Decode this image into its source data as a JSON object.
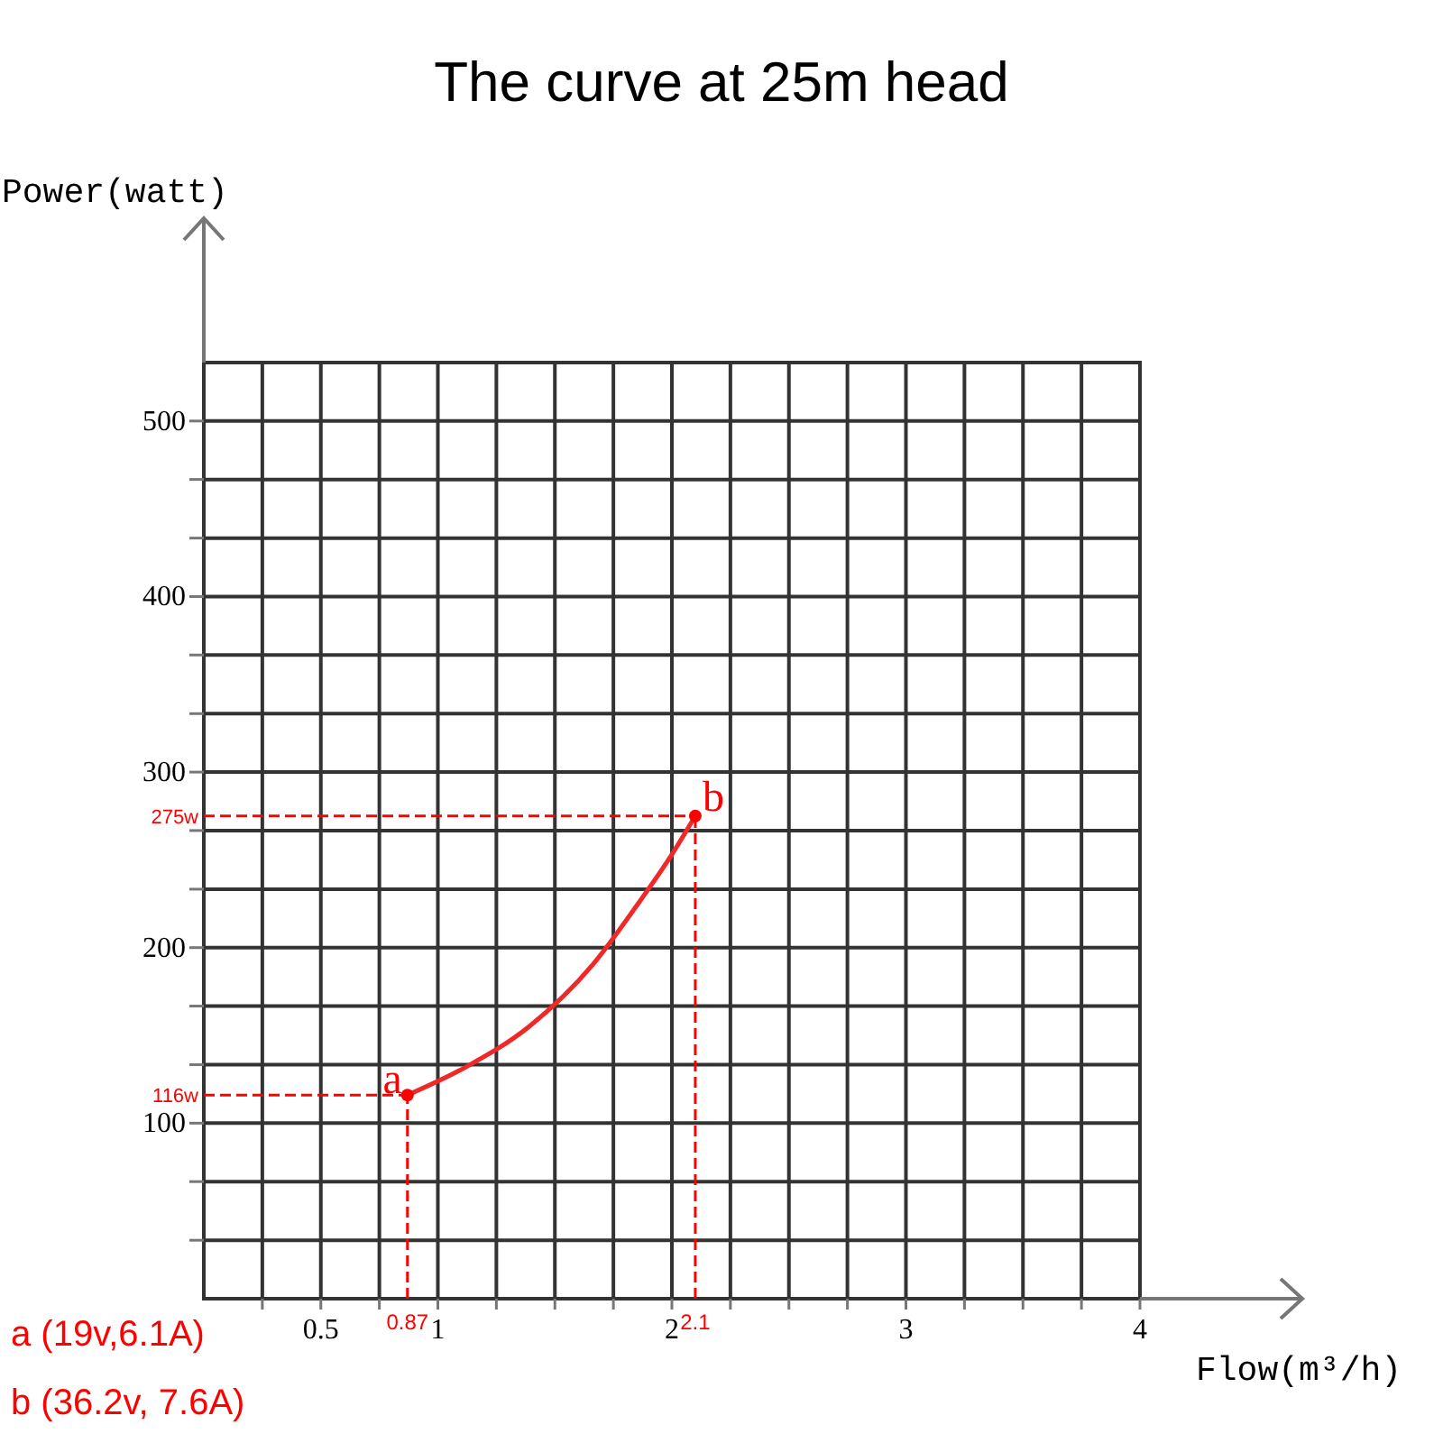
{
  "chart_data": {
    "type": "line",
    "title": "The curve at 25m head",
    "xlabel": "Flow(m³/h)",
    "ylabel": "Power(watt)",
    "x": [
      0.87,
      1.12,
      1.39,
      1.66,
      1.85,
      1.99,
      2.1
    ],
    "values": [
      116,
      132,
      155,
      190,
      224,
      251,
      275
    ],
    "color": "#f02828",
    "xlim": [
      0,
      4
    ],
    "ylim": [
      0,
      533.3
    ],
    "xticks": [
      {
        "value": 0.25,
        "label": null
      },
      0.5,
      {
        "value": 0.75,
        "label": null
      },
      1,
      {
        "value": 1.25,
        "label": null
      },
      {
        "value": 1.5,
        "label": null
      },
      {
        "value": 1.75,
        "label": null
      },
      2,
      {
        "value": 2.25,
        "label": null
      },
      {
        "value": 2.5,
        "label": null
      },
      {
        "value": 2.75,
        "label": null
      },
      3,
      {
        "value": 3.25,
        "label": null
      },
      {
        "value": 3.5,
        "label": null
      },
      {
        "value": 3.75,
        "label": null
      },
      4
    ],
    "yticks": [
      {
        "value": 33.3,
        "label": null
      },
      {
        "value": 66.7,
        "label": null
      },
      100,
      {
        "value": 133.3,
        "label": null
      },
      {
        "value": 166.7,
        "label": null
      },
      200,
      {
        "value": 233.3,
        "label": null
      },
      {
        "value": 266.7,
        "label": null
      },
      300,
      {
        "value": 333.3,
        "label": null
      },
      {
        "value": 366.7,
        "label": null
      },
      400,
      {
        "value": 433.3,
        "label": null
      },
      {
        "value": 466.7,
        "label": null
      },
      500
    ],
    "grid": true,
    "ref_lines": [
      {
        "axis": "x",
        "value": 0.87,
        "label": "0.87",
        "color": "#ff0000",
        "line_style": "dashed"
      },
      {
        "axis": "y",
        "value": 116,
        "label": "116w",
        "color": "#ff0000",
        "line_style": "dashed"
      },
      {
        "axis": "x",
        "value": 2.1,
        "label": "2.1",
        "color": "#ff0000",
        "line_style": "dashed"
      },
      {
        "axis": "y",
        "value": 275,
        "label": "275w",
        "color": "#ff0000",
        "line_style": "dashed"
      }
    ],
    "annotations": [
      {
        "text": "a",
        "x": 0.87,
        "y": 116
      },
      {
        "text": "b",
        "x": 2.1,
        "y": 275
      },
      "a (19v,6.1A)",
      "b (36.2v, 7.6A)"
    ]
  }
}
